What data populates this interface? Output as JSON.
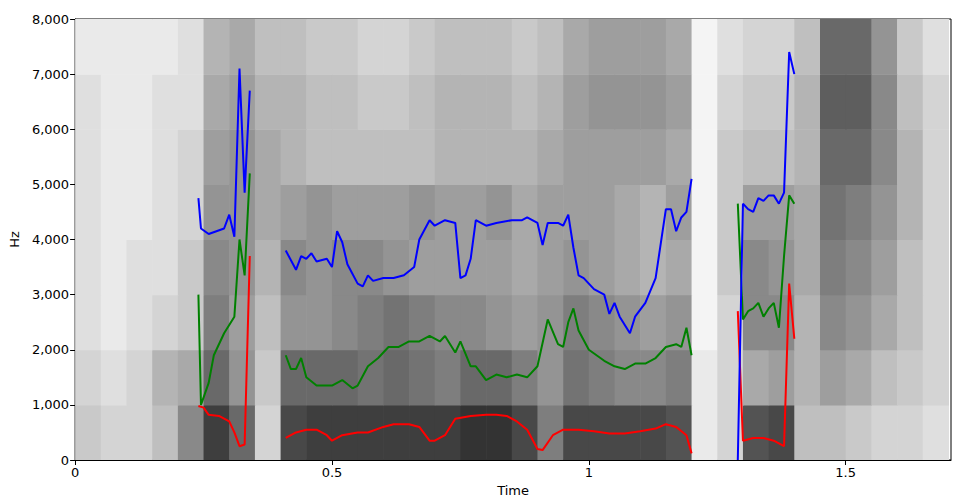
{
  "chart_data": {
    "type": "line",
    "x_label": "Time",
    "y_label": "Hz",
    "xlim": [
      0,
      1.705
    ],
    "xticks": [
      0,
      0.5,
      1,
      1.5
    ],
    "ylim": [
      0,
      8000
    ],
    "yticks": [
      0,
      1000,
      2000,
      3000,
      4000,
      5000,
      6000,
      7000,
      8000
    ],
    "grid": false,
    "spectrogram": {
      "times": [
        0.025,
        0.075,
        0.125,
        0.175,
        0.225,
        0.275,
        0.325,
        0.375,
        0.425,
        0.475,
        0.525,
        0.575,
        0.625,
        0.675,
        0.725,
        0.775,
        0.825,
        0.875,
        0.925,
        0.975,
        1.025,
        1.075,
        1.125,
        1.175,
        1.225,
        1.275,
        1.325,
        1.375,
        1.425,
        1.475,
        1.525,
        1.575,
        1.625,
        1.675
      ],
      "frequencies": [
        500,
        1500,
        2500,
        3500,
        4500,
        5500,
        6500,
        7500
      ],
      "range": [
        0,
        1
      ],
      "levels": [
        [
          0.25,
          0.2,
          0.2,
          0.3,
          0.55,
          0.9,
          0.7,
          0.2,
          0.85,
          0.9,
          0.9,
          0.9,
          0.9,
          0.9,
          0.9,
          0.95,
          0.95,
          0.85,
          0.6,
          0.85,
          0.85,
          0.85,
          0.85,
          0.8,
          0.1,
          0.2,
          0.8,
          0.85,
          0.3,
          0.3,
          0.25,
          0.2,
          0.2,
          0.15
        ],
        [
          0.2,
          0.15,
          0.2,
          0.35,
          0.4,
          0.7,
          0.5,
          0.25,
          0.7,
          0.7,
          0.7,
          0.65,
          0.7,
          0.65,
          0.6,
          0.7,
          0.7,
          0.6,
          0.5,
          0.65,
          0.6,
          0.55,
          0.55,
          0.6,
          0.1,
          0.2,
          0.4,
          0.45,
          0.35,
          0.45,
          0.4,
          0.3,
          0.25,
          0.2
        ],
        [
          0.15,
          0.1,
          0.15,
          0.2,
          0.25,
          0.6,
          0.45,
          0.3,
          0.5,
          0.5,
          0.55,
          0.6,
          0.65,
          0.6,
          0.55,
          0.55,
          0.5,
          0.45,
          0.5,
          0.6,
          0.55,
          0.5,
          0.45,
          0.5,
          0.05,
          0.2,
          0.55,
          0.55,
          0.35,
          0.55,
          0.5,
          0.4,
          0.3,
          0.2
        ],
        [
          0.15,
          0.1,
          0.15,
          0.15,
          0.25,
          0.55,
          0.5,
          0.35,
          0.55,
          0.5,
          0.55,
          0.55,
          0.5,
          0.45,
          0.45,
          0.45,
          0.45,
          0.4,
          0.45,
          0.5,
          0.45,
          0.4,
          0.35,
          0.4,
          0.05,
          0.25,
          0.55,
          0.5,
          0.4,
          0.6,
          0.55,
          0.45,
          0.3,
          0.2
        ],
        [
          0.15,
          0.1,
          0.1,
          0.15,
          0.2,
          0.5,
          0.5,
          0.4,
          0.45,
          0.5,
          0.45,
          0.45,
          0.45,
          0.5,
          0.45,
          0.45,
          0.5,
          0.4,
          0.45,
          0.45,
          0.45,
          0.4,
          0.35,
          0.45,
          0.05,
          0.25,
          0.45,
          0.45,
          0.4,
          0.65,
          0.6,
          0.5,
          0.35,
          0.2
        ],
        [
          0.15,
          0.1,
          0.1,
          0.15,
          0.2,
          0.45,
          0.5,
          0.4,
          0.35,
          0.3,
          0.3,
          0.3,
          0.3,
          0.3,
          0.35,
          0.35,
          0.35,
          0.35,
          0.4,
          0.45,
          0.45,
          0.45,
          0.45,
          0.4,
          0.05,
          0.25,
          0.3,
          0.3,
          0.35,
          0.7,
          0.7,
          0.55,
          0.35,
          0.2
        ],
        [
          0.15,
          0.1,
          0.1,
          0.15,
          0.15,
          0.4,
          0.45,
          0.35,
          0.35,
          0.3,
          0.3,
          0.25,
          0.25,
          0.3,
          0.35,
          0.35,
          0.35,
          0.3,
          0.35,
          0.45,
          0.5,
          0.5,
          0.5,
          0.45,
          0.05,
          0.2,
          0.25,
          0.25,
          0.35,
          0.75,
          0.75,
          0.55,
          0.3,
          0.2
        ],
        [
          0.1,
          0.1,
          0.1,
          0.1,
          0.15,
          0.35,
          0.4,
          0.3,
          0.3,
          0.25,
          0.25,
          0.2,
          0.2,
          0.25,
          0.3,
          0.3,
          0.3,
          0.25,
          0.3,
          0.4,
          0.45,
          0.45,
          0.45,
          0.4,
          0.05,
          0.15,
          0.2,
          0.2,
          0.3,
          0.7,
          0.7,
          0.5,
          0.25,
          0.15
        ]
      ]
    },
    "series": [
      {
        "color": "#ff0000",
        "x": [
          0.24,
          0.25,
          0.26,
          0.28,
          0.3,
          0.31,
          0.32,
          0.33,
          0.34,
          0.37,
          0.41,
          0.43,
          0.45,
          0.47,
          0.49,
          0.5,
          0.52,
          0.55,
          0.57,
          0.6,
          0.62,
          0.65,
          0.67,
          0.69,
          0.7,
          0.72,
          0.74,
          0.77,
          0.8,
          0.82,
          0.84,
          0.86,
          0.88,
          0.9,
          0.91,
          0.93,
          0.95,
          0.98,
          1.01,
          1.04,
          1.07,
          1.1,
          1.13,
          1.15,
          1.17,
          1.19,
          1.2,
          1.25,
          1.29,
          1.3,
          1.32,
          1.34,
          1.36,
          1.38,
          1.39,
          1.4
        ],
        "values": [
          980,
          950,
          820,
          800,
          700,
          500,
          250,
          280,
          3700,
          null,
          400,
          500,
          550,
          550,
          450,
          350,
          450,
          500,
          500,
          600,
          650,
          650,
          600,
          350,
          350,
          450,
          750,
          800,
          820,
          820,
          800,
          700,
          550,
          200,
          180,
          450,
          550,
          550,
          520,
          480,
          480,
          520,
          570,
          650,
          600,
          450,
          120,
          null,
          2700,
          350,
          400,
          400,
          350,
          250,
          3200,
          2200
        ]
      },
      {
        "color": "#008000",
        "x": [
          0.24,
          0.245,
          0.26,
          0.27,
          0.29,
          0.31,
          0.32,
          0.33,
          0.34,
          0.37,
          0.41,
          0.42,
          0.43,
          0.44,
          0.45,
          0.47,
          0.5,
          0.52,
          0.54,
          0.55,
          0.57,
          0.59,
          0.61,
          0.63,
          0.65,
          0.67,
          0.69,
          0.71,
          0.72,
          0.74,
          0.75,
          0.77,
          0.78,
          0.8,
          0.82,
          0.84,
          0.86,
          0.88,
          0.9,
          0.92,
          0.94,
          0.95,
          0.96,
          0.97,
          0.98,
          1.0,
          1.03,
          1.05,
          1.07,
          1.09,
          1.11,
          1.13,
          1.15,
          1.17,
          1.18,
          1.19,
          1.2,
          1.25,
          1.29,
          1.3,
          1.31,
          1.32,
          1.33,
          1.34,
          1.35,
          1.36,
          1.37,
          1.38,
          1.39,
          1.4
        ],
        "values": [
          3000,
          1000,
          1400,
          1900,
          2300,
          2600,
          4000,
          3350,
          5200,
          null,
          1900,
          1650,
          1650,
          1850,
          1500,
          1350,
          1350,
          1450,
          1300,
          1350,
          1700,
          1850,
          2050,
          2050,
          2150,
          2150,
          2250,
          2150,
          2250,
          1950,
          2150,
          1700,
          1700,
          1450,
          1550,
          1500,
          1550,
          1500,
          1700,
          2550,
          2100,
          2050,
          2500,
          2750,
          2350,
          2000,
          1800,
          1700,
          1650,
          1750,
          1750,
          1850,
          2050,
          2100,
          2050,
          2400,
          1900,
          null,
          4650,
          2550,
          2700,
          2750,
          2850,
          2600,
          2750,
          2850,
          2400,
          3700,
          4800,
          4650
        ]
      },
      {
        "color": "#0000ff",
        "x": [
          0.24,
          0.245,
          0.26,
          0.275,
          0.29,
          0.3,
          0.31,
          0.32,
          0.33,
          0.34,
          0.37,
          0.41,
          0.43,
          0.44,
          0.45,
          0.46,
          0.47,
          0.49,
          0.5,
          0.51,
          0.52,
          0.53,
          0.55,
          0.56,
          0.57,
          0.58,
          0.6,
          0.62,
          0.64,
          0.66,
          0.67,
          0.69,
          0.7,
          0.72,
          0.74,
          0.75,
          0.76,
          0.77,
          0.78,
          0.8,
          0.82,
          0.85,
          0.87,
          0.88,
          0.9,
          0.91,
          0.92,
          0.94,
          0.95,
          0.96,
          0.97,
          0.98,
          0.99,
          1.01,
          1.03,
          1.04,
          1.05,
          1.06,
          1.08,
          1.09,
          1.11,
          1.13,
          1.15,
          1.16,
          1.17,
          1.18,
          1.19,
          1.2,
          1.25,
          1.29,
          1.3,
          1.31,
          1.32,
          1.33,
          1.34,
          1.35,
          1.36,
          1.37,
          1.38,
          1.39,
          1.4
        ],
        "values": [
          4750,
          4200,
          4100,
          4150,
          4200,
          4450,
          4050,
          7100,
          4850,
          6700,
          null,
          3800,
          3450,
          3700,
          3650,
          3750,
          3600,
          3650,
          3500,
          4150,
          3950,
          3550,
          3200,
          3150,
          3350,
          3250,
          3300,
          3300,
          3350,
          3500,
          4000,
          4350,
          4250,
          4350,
          4300,
          3300,
          3350,
          3650,
          4350,
          4250,
          4300,
          4350,
          4350,
          4400,
          4300,
          3900,
          4300,
          4300,
          4250,
          4450,
          3850,
          3350,
          3300,
          3100,
          3000,
          2650,
          2850,
          2600,
          2300,
          2600,
          2850,
          3300,
          4550,
          4550,
          4150,
          4400,
          4500,
          5100,
          null,
          0,
          4650,
          4550,
          4500,
          4750,
          4700,
          4800,
          4800,
          4650,
          4850,
          7400,
          7000
        ]
      }
    ]
  }
}
